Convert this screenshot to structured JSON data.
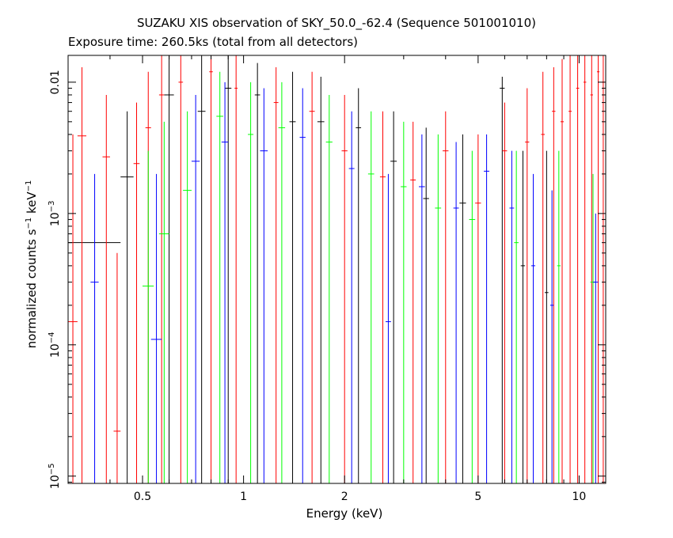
{
  "chart_data": {
    "type": "scatter",
    "title": "SUZAKU XIS observation of SKY_50.0_-62.4 (Sequence 501001010)",
    "subtitle": "Exposure time: 260.5ks (total from all detectors)",
    "xlabel": "Energy (keV)",
    "ylabel_parts": {
      "base": "normalized counts s",
      "exp1": "−1",
      "mid": " keV",
      "exp2": "−1"
    },
    "x_scale": "log",
    "y_scale": "log",
    "xlim": [
      0.3,
      12.0
    ],
    "ylim": [
      8.8e-06,
      0.016
    ],
    "x_ticks": [
      {
        "value": 0.5,
        "label": "0.5"
      },
      {
        "value": 1,
        "label": "1"
      },
      {
        "value": 2,
        "label": "2"
      },
      {
        "value": 5,
        "label": "5"
      },
      {
        "value": 10,
        "label": "10"
      }
    ],
    "y_ticks": [
      {
        "value": 1e-05,
        "label_base": "10",
        "label_exp": "−5"
      },
      {
        "value": 0.0001,
        "label_base": "10",
        "label_exp": "−4"
      },
      {
        "value": 0.001,
        "label_base": "10",
        "label_exp": "−3"
      },
      {
        "value": 0.01,
        "label_base": "0.01",
        "label_exp": ""
      }
    ],
    "colors": {
      "black": "#000000",
      "red": "#ff0000",
      "green": "#00ff00",
      "blue": "#0000ff"
    },
    "series": [
      {
        "color": "#000000",
        "points": [
          {
            "x": 0.3,
            "xlo": 0.3,
            "xhi": 0.43,
            "y": 0.0006,
            "ylo": 8.8e-06,
            "yhi": 0.016
          },
          {
            "x": 0.45,
            "xlo": 0.43,
            "xhi": 0.47,
            "y": 0.0019,
            "ylo": 8.8e-06,
            "yhi": 0.006
          },
          {
            "x": 0.6,
            "xlo": 0.58,
            "xhi": 0.62,
            "y": 0.008,
            "ylo": 8.8e-06,
            "yhi": 0.016
          },
          {
            "x": 0.75,
            "xlo": 0.73,
            "xhi": 0.77,
            "y": 0.006,
            "ylo": 8.8e-06,
            "yhi": 0.016
          },
          {
            "x": 0.9,
            "xlo": 0.88,
            "xhi": 0.92,
            "y": 0.009,
            "ylo": 8.8e-06,
            "yhi": 0.016
          },
          {
            "x": 1.1,
            "xlo": 1.08,
            "xhi": 1.12,
            "y": 0.008,
            "ylo": 8.8e-06,
            "yhi": 0.014
          },
          {
            "x": 1.4,
            "xlo": 1.37,
            "xhi": 1.43,
            "y": 0.005,
            "ylo": 8.8e-06,
            "yhi": 0.012
          },
          {
            "x": 1.7,
            "xlo": 1.66,
            "xhi": 1.74,
            "y": 0.005,
            "ylo": 8.8e-06,
            "yhi": 0.011
          },
          {
            "x": 2.2,
            "xlo": 2.16,
            "xhi": 2.24,
            "y": 0.0045,
            "ylo": 8.8e-06,
            "yhi": 0.009
          },
          {
            "x": 2.8,
            "xlo": 2.74,
            "xhi": 2.86,
            "y": 0.0025,
            "ylo": 8.8e-06,
            "yhi": 0.006
          },
          {
            "x": 3.5,
            "xlo": 3.43,
            "xhi": 3.57,
            "y": 0.0013,
            "ylo": 8.8e-06,
            "yhi": 0.0045
          },
          {
            "x": 4.5,
            "xlo": 4.4,
            "xhi": 4.6,
            "y": 0.0012,
            "ylo": 8.8e-06,
            "yhi": 0.004
          },
          {
            "x": 5.9,
            "xlo": 5.8,
            "xhi": 6.0,
            "y": 0.009,
            "ylo": 8.8e-06,
            "yhi": 0.011
          },
          {
            "x": 6.8,
            "xlo": 6.7,
            "xhi": 6.9,
            "y": 0.0004,
            "ylo": 8.8e-06,
            "yhi": 0.003
          },
          {
            "x": 8.0,
            "xlo": 7.9,
            "xhi": 8.1,
            "y": 0.00025,
            "ylo": 8.8e-06,
            "yhi": 0.003
          }
        ]
      },
      {
        "color": "#ff0000",
        "points": [
          {
            "x": 0.31,
            "xlo": 0.3,
            "xhi": 0.32,
            "y": 0.00015,
            "ylo": 8.8e-06,
            "yhi": 0.004
          },
          {
            "x": 0.33,
            "xlo": 0.32,
            "xhi": 0.34,
            "y": 0.0039,
            "ylo": 8.8e-06,
            "yhi": 0.013
          },
          {
            "x": 0.39,
            "xlo": 0.38,
            "xhi": 0.4,
            "y": 0.0027,
            "ylo": 8.8e-06,
            "yhi": 0.008
          },
          {
            "x": 0.42,
            "xlo": 0.41,
            "xhi": 0.43,
            "y": 2.2e-05,
            "ylo": 8.8e-06,
            "yhi": 0.0005
          },
          {
            "x": 0.48,
            "xlo": 0.47,
            "xhi": 0.49,
            "y": 0.0024,
            "ylo": 8.8e-06,
            "yhi": 0.007
          },
          {
            "x": 0.52,
            "xlo": 0.51,
            "xhi": 0.53,
            "y": 0.0045,
            "ylo": 8.8e-06,
            "yhi": 0.012
          },
          {
            "x": 0.57,
            "xlo": 0.56,
            "xhi": 0.58,
            "y": 0.008,
            "ylo": 8.8e-06,
            "yhi": 0.016
          },
          {
            "x": 0.65,
            "xlo": 0.64,
            "xhi": 0.66,
            "y": 0.01,
            "ylo": 8.8e-06,
            "yhi": 0.016
          },
          {
            "x": 0.8,
            "xlo": 0.79,
            "xhi": 0.81,
            "y": 0.012,
            "ylo": 8.8e-06,
            "yhi": 0.016
          },
          {
            "x": 0.95,
            "xlo": 0.94,
            "xhi": 0.96,
            "y": 0.009,
            "ylo": 8.8e-06,
            "yhi": 0.016
          },
          {
            "x": 1.25,
            "xlo": 1.23,
            "xhi": 1.27,
            "y": 0.007,
            "ylo": 8.8e-06,
            "yhi": 0.013
          },
          {
            "x": 1.6,
            "xlo": 1.57,
            "xhi": 1.63,
            "y": 0.006,
            "ylo": 8.8e-06,
            "yhi": 0.012
          },
          {
            "x": 2.0,
            "xlo": 1.96,
            "xhi": 2.04,
            "y": 0.003,
            "ylo": 8.8e-06,
            "yhi": 0.008
          },
          {
            "x": 2.6,
            "xlo": 2.55,
            "xhi": 2.65,
            "y": 0.0019,
            "ylo": 8.8e-06,
            "yhi": 0.006
          },
          {
            "x": 3.2,
            "xlo": 3.14,
            "xhi": 3.26,
            "y": 0.0018,
            "ylo": 8.8e-06,
            "yhi": 0.005
          },
          {
            "x": 4.0,
            "xlo": 3.92,
            "xhi": 4.08,
            "y": 0.003,
            "ylo": 8.8e-06,
            "yhi": 0.006
          },
          {
            "x": 5.0,
            "xlo": 4.9,
            "xhi": 5.1,
            "y": 0.0012,
            "ylo": 8.8e-06,
            "yhi": 0.004
          },
          {
            "x": 6.0,
            "xlo": 5.9,
            "xhi": 6.1,
            "y": 0.003,
            "ylo": 8.8e-06,
            "yhi": 0.007
          },
          {
            "x": 7.0,
            "xlo": 6.9,
            "xhi": 7.1,
            "y": 0.0035,
            "ylo": 8.8e-06,
            "yhi": 0.009
          },
          {
            "x": 7.8,
            "xlo": 7.7,
            "xhi": 7.9,
            "y": 0.004,
            "ylo": 8.8e-06,
            "yhi": 0.012
          },
          {
            "x": 8.4,
            "xlo": 8.3,
            "xhi": 8.5,
            "y": 0.006,
            "ylo": 8.8e-06,
            "yhi": 0.013
          },
          {
            "x": 8.9,
            "xlo": 8.8,
            "xhi": 9.0,
            "y": 0.005,
            "ylo": 8.8e-06,
            "yhi": 0.015
          },
          {
            "x": 9.4,
            "xlo": 9.3,
            "xhi": 9.5,
            "y": 0.006,
            "ylo": 8.8e-06,
            "yhi": 0.016
          },
          {
            "x": 9.9,
            "xlo": 9.8,
            "xhi": 10.0,
            "y": 0.009,
            "ylo": 8.8e-06,
            "yhi": 0.016
          },
          {
            "x": 10.4,
            "xlo": 10.3,
            "xhi": 10.5,
            "y": 0.01,
            "ylo": 8.8e-06,
            "yhi": 0.016
          },
          {
            "x": 10.9,
            "xlo": 10.8,
            "xhi": 11.0,
            "y": 0.008,
            "ylo": 8.8e-06,
            "yhi": 0.016
          },
          {
            "x": 11.4,
            "xlo": 11.3,
            "xhi": 11.5,
            "y": 0.012,
            "ylo": 8.8e-06,
            "yhi": 0.016
          },
          {
            "x": 11.8,
            "xlo": 11.7,
            "xhi": 11.9,
            "y": 0.01,
            "ylo": 8.8e-06,
            "yhi": 0.016
          }
        ]
      },
      {
        "color": "#00ff00",
        "points": [
          {
            "x": 0.52,
            "xlo": 0.5,
            "xhi": 0.54,
            "y": 0.00028,
            "ylo": 8.8e-06,
            "yhi": 0.003
          },
          {
            "x": 0.58,
            "xlo": 0.56,
            "xhi": 0.6,
            "y": 0.0007,
            "ylo": 8.8e-06,
            "yhi": 0.005
          },
          {
            "x": 0.68,
            "xlo": 0.66,
            "xhi": 0.7,
            "y": 0.0015,
            "ylo": 8.8e-06,
            "yhi": 0.006
          },
          {
            "x": 0.85,
            "xlo": 0.83,
            "xhi": 0.87,
            "y": 0.0055,
            "ylo": 8.8e-06,
            "yhi": 0.012
          },
          {
            "x": 1.05,
            "xlo": 1.03,
            "xhi": 1.07,
            "y": 0.004,
            "ylo": 8.8e-06,
            "yhi": 0.01
          },
          {
            "x": 1.3,
            "xlo": 1.27,
            "xhi": 1.33,
            "y": 0.0045,
            "ylo": 8.8e-06,
            "yhi": 0.01
          },
          {
            "x": 1.8,
            "xlo": 1.76,
            "xhi": 1.84,
            "y": 0.0035,
            "ylo": 8.8e-06,
            "yhi": 0.008
          },
          {
            "x": 2.4,
            "xlo": 2.35,
            "xhi": 2.45,
            "y": 0.002,
            "ylo": 8.8e-06,
            "yhi": 0.006
          },
          {
            "x": 3.0,
            "xlo": 2.94,
            "xhi": 3.06,
            "y": 0.0016,
            "ylo": 8.8e-06,
            "yhi": 0.005
          },
          {
            "x": 3.8,
            "xlo": 3.72,
            "xhi": 3.88,
            "y": 0.0011,
            "ylo": 8.8e-06,
            "yhi": 0.004
          },
          {
            "x": 4.8,
            "xlo": 4.7,
            "xhi": 4.9,
            "y": 0.0009,
            "ylo": 8.8e-06,
            "yhi": 0.003
          },
          {
            "x": 6.5,
            "xlo": 6.4,
            "xhi": 6.6,
            "y": 0.0006,
            "ylo": 8.8e-06,
            "yhi": 0.003
          },
          {
            "x": 8.7,
            "xlo": 8.6,
            "xhi": 8.8,
            "y": 0.0004,
            "ylo": 8.8e-06,
            "yhi": 0.003
          },
          {
            "x": 11.0,
            "xlo": 10.8,
            "xhi": 11.2,
            "y": 0.0003,
            "ylo": 8.8e-06,
            "yhi": 0.002
          }
        ]
      },
      {
        "color": "#0000ff",
        "points": [
          {
            "x": 0.36,
            "xlo": 0.35,
            "xhi": 0.37,
            "y": 0.0003,
            "ylo": 8.8e-06,
            "yhi": 0.002
          },
          {
            "x": 0.55,
            "xlo": 0.53,
            "xhi": 0.57,
            "y": 0.00011,
            "ylo": 8.8e-06,
            "yhi": 0.002
          },
          {
            "x": 0.72,
            "xlo": 0.7,
            "xhi": 0.74,
            "y": 0.0025,
            "ylo": 8.8e-06,
            "yhi": 0.008
          },
          {
            "x": 0.88,
            "xlo": 0.86,
            "xhi": 0.9,
            "y": 0.0035,
            "ylo": 8.8e-06,
            "yhi": 0.01
          },
          {
            "x": 1.15,
            "xlo": 1.12,
            "xhi": 1.18,
            "y": 0.003,
            "ylo": 8.8e-06,
            "yhi": 0.009
          },
          {
            "x": 1.5,
            "xlo": 1.47,
            "xhi": 1.53,
            "y": 0.0038,
            "ylo": 8.8e-06,
            "yhi": 0.009
          },
          {
            "x": 2.1,
            "xlo": 2.06,
            "xhi": 2.14,
            "y": 0.0022,
            "ylo": 8.8e-06,
            "yhi": 0.006
          },
          {
            "x": 2.7,
            "xlo": 2.65,
            "xhi": 2.75,
            "y": 0.00015,
            "ylo": 8.8e-06,
            "yhi": 0.002
          },
          {
            "x": 3.4,
            "xlo": 3.33,
            "xhi": 3.47,
            "y": 0.0016,
            "ylo": 8.8e-06,
            "yhi": 0.004
          },
          {
            "x": 4.3,
            "xlo": 4.22,
            "xhi": 4.38,
            "y": 0.0011,
            "ylo": 8.8e-06,
            "yhi": 0.0035
          },
          {
            "x": 5.3,
            "xlo": 5.2,
            "xhi": 5.4,
            "y": 0.0021,
            "ylo": 8.8e-06,
            "yhi": 0.004
          },
          {
            "x": 6.3,
            "xlo": 6.2,
            "xhi": 6.4,
            "y": 0.0011,
            "ylo": 8.8e-06,
            "yhi": 0.003
          },
          {
            "x": 7.3,
            "xlo": 7.2,
            "xhi": 7.4,
            "y": 0.0004,
            "ylo": 8.8e-06,
            "yhi": 0.002
          },
          {
            "x": 8.3,
            "xlo": 8.2,
            "xhi": 8.4,
            "y": 0.0002,
            "ylo": 8.8e-06,
            "yhi": 0.0015
          },
          {
            "x": 11.2,
            "xlo": 11.0,
            "xhi": 11.4,
            "y": 0.0003,
            "ylo": 8.8e-06,
            "yhi": 0.001
          }
        ]
      }
    ]
  }
}
